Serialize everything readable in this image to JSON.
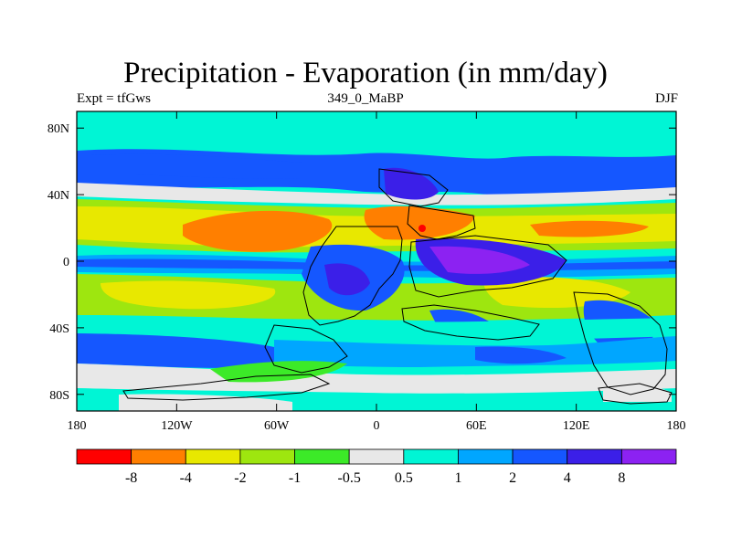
{
  "title": "Precipitation - Evaporation (in mm/day)",
  "subtitle_left": "Expt = tfGws",
  "subtitle_center": "349_0_MaBP",
  "subtitle_right": "DJF",
  "map": {
    "lon_range": [
      -180,
      180
    ],
    "lat_range": [
      -90,
      90
    ],
    "x_ticks": [
      {
        "value": -180,
        "label": "180"
      },
      {
        "value": -120,
        "label": "120W"
      },
      {
        "value": -60,
        "label": "60W"
      },
      {
        "value": 0,
        "label": "0"
      },
      {
        "value": 60,
        "label": "60E"
      },
      {
        "value": 120,
        "label": "120E"
      },
      {
        "value": 180,
        "label": "180"
      }
    ],
    "y_ticks": [
      {
        "value": 80,
        "label": "80N"
      },
      {
        "value": 40,
        "label": "40N"
      },
      {
        "value": 0,
        "label": "0"
      },
      {
        "value": -40,
        "label": "40S"
      },
      {
        "value": -80,
        "label": "80S"
      }
    ]
  },
  "colorbar": {
    "colors": [
      "#ff0000",
      "#ff7f00",
      "#e8e800",
      "#9ee60f",
      "#3cea28",
      "#e8e8e8",
      "#00f5d5",
      "#00a6ff",
      "#1557ff",
      "#3b1fe8",
      "#8c22f2"
    ],
    "labels": [
      "-8",
      "-4",
      "-2",
      "-1",
      "-0.5",
      "0.5",
      "1",
      "2",
      "4",
      "8"
    ]
  },
  "colors": {
    "very_wet": "#8c22f2",
    "wet4": "#3b1fe8",
    "wet2": "#1557ff",
    "wet1": "#00a6ff",
    "wet05": "#00f5d5",
    "neutral": "#e8e8e8",
    "dry05": "#3cea28",
    "dry1": "#9ee60f",
    "dry2": "#e8e800",
    "dry4": "#ff7f00",
    "dry8": "#ff0000"
  }
}
